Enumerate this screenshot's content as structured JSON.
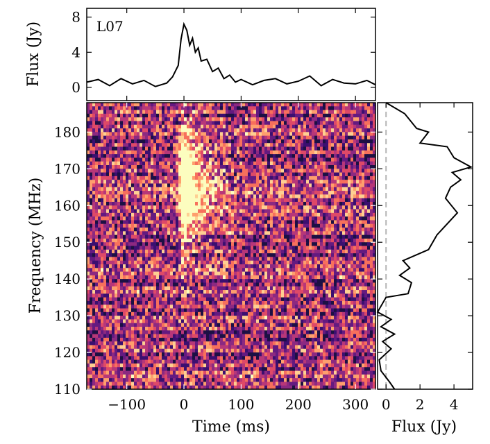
{
  "chart_data": [
    {
      "panel": "time-series",
      "type": "line",
      "label": "L07",
      "ylabel": "Flux (Jy)",
      "xlim": [
        -170,
        335
      ],
      "ylim": [
        -1.5,
        9
      ],
      "yticks": [
        0,
        4,
        8
      ],
      "x": [
        -170,
        -150,
        -130,
        -110,
        -90,
        -70,
        -50,
        -30,
        -20,
        -10,
        -5,
        0,
        5,
        10,
        15,
        20,
        25,
        30,
        40,
        50,
        60,
        70,
        80,
        90,
        100,
        120,
        140,
        160,
        180,
        200,
        220,
        240,
        260,
        280,
        300,
        320,
        335
      ],
      "y": [
        0.6,
        0.9,
        0.2,
        1.0,
        0.4,
        0.8,
        0.1,
        0.5,
        1.2,
        2.5,
        5.5,
        7.2,
        6.5,
        4.8,
        5.6,
        4.0,
        4.5,
        3.0,
        3.2,
        1.8,
        2.2,
        1.0,
        1.4,
        0.6,
        0.9,
        0.3,
        0.8,
        1.0,
        0.4,
        0.7,
        1.3,
        0.2,
        0.9,
        0.5,
        0.4,
        0.8,
        0.3
      ]
    },
    {
      "panel": "dynamic-spectrum",
      "type": "heatmap",
      "xlabel": "Time (ms)",
      "ylabel": "Frequency (MHz)",
      "xlim": [
        -170,
        335
      ],
      "ylim": [
        110,
        188
      ],
      "xticks": [
        -100,
        0,
        100,
        200,
        300
      ],
      "yticks": [
        110,
        120,
        130,
        140,
        150,
        160,
        170,
        180
      ],
      "colormap": "magma"
    },
    {
      "panel": "spectrum",
      "type": "line",
      "xlabel": "Flux (Jy)",
      "xlim": [
        -0.5,
        5.1
      ],
      "ylim": [
        110,
        188
      ],
      "xticks": [
        0,
        2,
        4
      ],
      "reference_line_x": 0,
      "x": [
        0.5,
        0.2,
        -0.3,
        -0.4,
        0.3,
        -0.2,
        0.5,
        -0.3,
        0.3,
        -0.5,
        0.0,
        1.3,
        1.5,
        0.8,
        1.4,
        1.0,
        2.5,
        3.0,
        4.2,
        3.5,
        3.8,
        4.4,
        3.9,
        5.0,
        4.0,
        3.6,
        2.0,
        2.5,
        1.8,
        1.1,
        0.0
      ],
      "y": [
        110,
        112,
        115,
        118,
        121,
        123,
        125,
        127,
        129,
        131,
        135,
        136,
        139,
        141,
        143,
        145,
        148,
        152,
        158,
        162,
        165,
        167,
        169,
        170.5,
        173,
        176,
        177,
        180,
        181,
        185,
        188
      ]
    }
  ],
  "colors": {
    "line": "#000000",
    "reference_line": "#b4b4b4",
    "magma": [
      "#1c1044",
      "#3b0f70",
      "#641a80",
      "#8c2981",
      "#b73779",
      "#de4968",
      "#f7705c",
      "#fe9f6d",
      "#fecf92",
      "#fcfdbf"
    ]
  }
}
